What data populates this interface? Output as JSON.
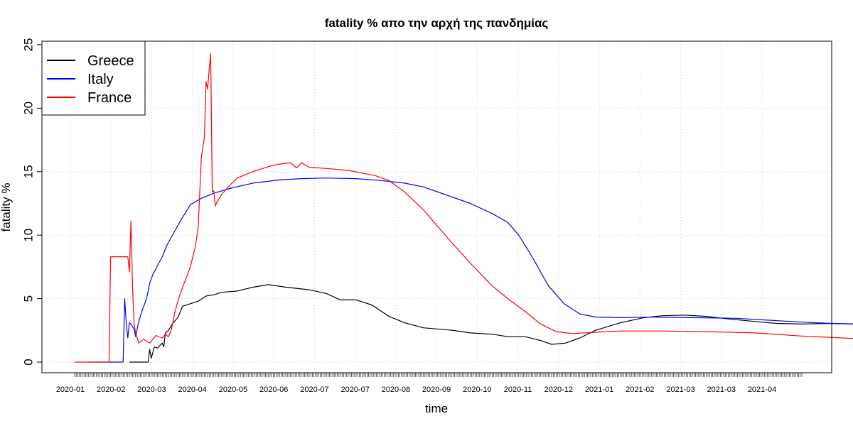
{
  "chart_data": {
    "type": "line",
    "title": "fatality % απο την αρχή της πανδημίας",
    "xlabel": "time",
    "ylabel": "fatality %",
    "ylim": [
      0,
      25
    ],
    "yticks": [
      0,
      5,
      10,
      15,
      20,
      25
    ],
    "grid": true,
    "legend": "top-left",
    "x_tick_labels": [
      "2020-01",
      "2020-02",
      "2020-03",
      "2020-04",
      "2020-05",
      "2020-06",
      "2020-07",
      "2020-07",
      "2020-08",
      "2020-09",
      "2020-10",
      "2020-11",
      "2020-12",
      "2021-01",
      "2021-02",
      "2021-03",
      "2021-03",
      "2021-04"
    ],
    "x_start": "2020-01-22",
    "x_end": "2021-05-01",
    "series": [
      {
        "name": "Greece",
        "color": "#000000",
        "points": [
          [
            "2020-02-26",
            0
          ],
          [
            "2020-03-09",
            0
          ],
          [
            "2020-03-10",
            1
          ],
          [
            "2020-03-11",
            0.3
          ],
          [
            "2020-03-13",
            1.2
          ],
          [
            "2020-03-15",
            1.1
          ],
          [
            "2020-03-18",
            1.5
          ],
          [
            "2020-03-19",
            1.2
          ],
          [
            "2020-03-20",
            2.3
          ],
          [
            "2020-03-22",
            2.5
          ],
          [
            "2020-03-25",
            3.1
          ],
          [
            "2020-03-28",
            3.5
          ],
          [
            "2020-03-31",
            4.4
          ],
          [
            "2020-04-05",
            4.6
          ],
          [
            "2020-04-10",
            4.8
          ],
          [
            "2020-04-15",
            5.2
          ],
          [
            "2020-04-20",
            5.3
          ],
          [
            "2020-04-25",
            5.5
          ],
          [
            "2020-05-05",
            5.6
          ],
          [
            "2020-05-15",
            5.9
          ],
          [
            "2020-05-25",
            6.1
          ],
          [
            "2020-06-05",
            5.9
          ],
          [
            "2020-06-20",
            5.7
          ],
          [
            "2020-07-01",
            5.4
          ],
          [
            "2020-07-10",
            4.9
          ],
          [
            "2020-07-20",
            4.9
          ],
          [
            "2020-07-30",
            4.5
          ],
          [
            "2020-08-10",
            3.6
          ],
          [
            "2020-08-20",
            3.1
          ],
          [
            "2020-09-01",
            2.7
          ],
          [
            "2020-09-20",
            2.5
          ],
          [
            "2020-10-01",
            2.3
          ],
          [
            "2020-10-15",
            2.2
          ],
          [
            "2020-10-25",
            2.0
          ],
          [
            "2020-11-05",
            2.0
          ],
          [
            "2020-11-15",
            1.7
          ],
          [
            "2020-11-22",
            1.4
          ],
          [
            "2020-12-01",
            1.5
          ],
          [
            "2020-12-10",
            1.9
          ],
          [
            "2020-12-20",
            2.5
          ],
          [
            "2021-01-05",
            3.1
          ],
          [
            "2021-01-20",
            3.5
          ],
          [
            "2021-02-01",
            3.65
          ],
          [
            "2021-02-15",
            3.7
          ],
          [
            "2021-03-01",
            3.6
          ],
          [
            "2021-03-15",
            3.4
          ],
          [
            "2021-04-01",
            3.2
          ],
          [
            "2021-04-15",
            3.05
          ],
          [
            "2021-05-01",
            3.0
          ],
          [
            "2021-05-20",
            3.05
          ],
          [
            "2021-06-05",
            3.0
          ]
        ]
      },
      {
        "name": "Italy",
        "color": "#0000ff",
        "points": [
          [
            "2020-01-31",
            0
          ],
          [
            "2020-02-21",
            0
          ],
          [
            "2020-02-22",
            0
          ],
          [
            "2020-02-23",
            5
          ],
          [
            "2020-02-24",
            3.1
          ],
          [
            "2020-02-25",
            1.9
          ],
          [
            "2020-02-26",
            3.1
          ],
          [
            "2020-02-27",
            3.0
          ],
          [
            "2020-02-29",
            2.6
          ],
          [
            "2020-03-01",
            2.0
          ],
          [
            "2020-03-03",
            3.2
          ],
          [
            "2020-03-05",
            4.0
          ],
          [
            "2020-03-08",
            5.0
          ],
          [
            "2020-03-10",
            6.2
          ],
          [
            "2020-03-12",
            6.9
          ],
          [
            "2020-03-15",
            7.6
          ],
          [
            "2020-03-18",
            8.3
          ],
          [
            "2020-03-21",
            9.2
          ],
          [
            "2020-03-25",
            10.1
          ],
          [
            "2020-03-30",
            11.2
          ],
          [
            "2020-04-05",
            12.4
          ],
          [
            "2020-04-12",
            12.9
          ],
          [
            "2020-04-20",
            13.3
          ],
          [
            "2020-05-01",
            13.7
          ],
          [
            "2020-05-15",
            14.1
          ],
          [
            "2020-06-01",
            14.35
          ],
          [
            "2020-06-15",
            14.45
          ],
          [
            "2020-07-01",
            14.5
          ],
          [
            "2020-07-20",
            14.45
          ],
          [
            "2020-08-05",
            14.3
          ],
          [
            "2020-08-20",
            14.1
          ],
          [
            "2020-09-01",
            13.8
          ],
          [
            "2020-09-15",
            13.2
          ],
          [
            "2020-10-01",
            12.5
          ],
          [
            "2020-10-15",
            11.7
          ],
          [
            "2020-10-25",
            11.0
          ],
          [
            "2020-11-01",
            10.0
          ],
          [
            "2020-11-10",
            8.2
          ],
          [
            "2020-11-20",
            6.0
          ],
          [
            "2020-11-30",
            4.6
          ],
          [
            "2020-12-10",
            3.8
          ],
          [
            "2020-12-20",
            3.55
          ],
          [
            "2021-01-05",
            3.5
          ],
          [
            "2021-01-25",
            3.55
          ],
          [
            "2021-02-20",
            3.5
          ],
          [
            "2021-03-20",
            3.45
          ],
          [
            "2021-04-10",
            3.3
          ],
          [
            "2021-05-01",
            3.15
          ],
          [
            "2021-05-20",
            3.05
          ],
          [
            "2021-06-05",
            3.0
          ]
        ]
      },
      {
        "name": "France",
        "color": "#ff0000",
        "points": [
          [
            "2020-01-22",
            0
          ],
          [
            "2020-02-13",
            0
          ],
          [
            "2020-02-14",
            8.3
          ],
          [
            "2020-02-25",
            8.3
          ],
          [
            "2020-02-26",
            7.1
          ],
          [
            "2020-02-27",
            11.1
          ],
          [
            "2020-02-28",
            6.0
          ],
          [
            "2020-02-29",
            3.0
          ],
          [
            "2020-03-01",
            2.3
          ],
          [
            "2020-03-03",
            1.5
          ],
          [
            "2020-03-06",
            1.8
          ],
          [
            "2020-03-10",
            1.5
          ],
          [
            "2020-03-14",
            2.1
          ],
          [
            "2020-03-18",
            1.9
          ],
          [
            "2020-03-20",
            2.2
          ],
          [
            "2020-03-22",
            2.0
          ],
          [
            "2020-03-24",
            2.6
          ],
          [
            "2020-03-26",
            3.9
          ],
          [
            "2020-03-29",
            5.2
          ],
          [
            "2020-04-01",
            6.2
          ],
          [
            "2020-04-05",
            7.5
          ],
          [
            "2020-04-08",
            9.0
          ],
          [
            "2020-04-10",
            10.6
          ],
          [
            "2020-04-12",
            16.1
          ],
          [
            "2020-04-14",
            17.7
          ],
          [
            "2020-04-15",
            22.1
          ],
          [
            "2020-04-16",
            21.5
          ],
          [
            "2020-04-17",
            23.0
          ],
          [
            "2020-04-18",
            24.3
          ],
          [
            "2020-04-19",
            13.4
          ],
          [
            "2020-04-20",
            13.5
          ],
          [
            "2020-04-21",
            12.3
          ],
          [
            "2020-04-22",
            12.6
          ],
          [
            "2020-04-25",
            13.2
          ],
          [
            "2020-04-30",
            13.9
          ],
          [
            "2020-05-05",
            14.5
          ],
          [
            "2020-05-15",
            15.0
          ],
          [
            "2020-05-25",
            15.4
          ],
          [
            "2020-06-01",
            15.6
          ],
          [
            "2020-06-08",
            15.7
          ],
          [
            "2020-06-12",
            15.3
          ],
          [
            "2020-06-15",
            15.7
          ],
          [
            "2020-06-20",
            15.35
          ],
          [
            "2020-07-01",
            15.25
          ],
          [
            "2020-07-15",
            15.1
          ],
          [
            "2020-08-01",
            14.7
          ],
          [
            "2020-08-10",
            14.3
          ],
          [
            "2020-08-20",
            13.4
          ],
          [
            "2020-09-01",
            12.0
          ],
          [
            "2020-09-10",
            10.7
          ],
          [
            "2020-09-20",
            9.3
          ],
          [
            "2020-10-01",
            7.8
          ],
          [
            "2020-10-15",
            6.0
          ],
          [
            "2020-10-25",
            5.0
          ],
          [
            "2020-11-05",
            4.0
          ],
          [
            "2020-11-15",
            3.0
          ],
          [
            "2020-11-25",
            2.4
          ],
          [
            "2020-12-05",
            2.25
          ],
          [
            "2020-12-20",
            2.35
          ],
          [
            "2021-01-05",
            2.45
          ],
          [
            "2021-02-01",
            2.45
          ],
          [
            "2021-03-01",
            2.4
          ],
          [
            "2021-04-01",
            2.3
          ],
          [
            "2021-05-01",
            2.05
          ],
          [
            "2021-06-05",
            1.85
          ]
        ]
      }
    ]
  }
}
